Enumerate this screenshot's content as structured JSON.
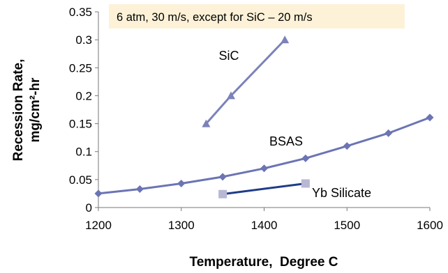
{
  "chart_data": {
    "type": "line",
    "title": "",
    "xlabel": "Temperature,  Degree C",
    "ylabel": "Recession Rate,",
    "ylabel_line2": "mg/cm²-hr",
    "xlim": [
      1200,
      1600
    ],
    "ylim": [
      0,
      0.35
    ],
    "x_ticks": [
      "1200",
      "1300",
      "1400",
      "1500",
      "1600"
    ],
    "y_ticks": [
      "0",
      "0.05",
      "0.1",
      "0.15",
      "0.2",
      "0.25",
      "0.3",
      "0.35"
    ],
    "grid": false,
    "annotation": "6 atm, 30 m/s, except for SiC – 20 m/s",
    "series": [
      {
        "name": "SiC",
        "marker": "triangle",
        "color": "#7b82b8",
        "x": [
          1330,
          1360,
          1425
        ],
        "y": [
          0.15,
          0.2,
          0.3
        ]
      },
      {
        "name": "BSAS",
        "marker": "diamond",
        "color": "#6b74b4",
        "x": [
          1200,
          1250,
          1300,
          1350,
          1400,
          1450,
          1500,
          1550,
          1600
        ],
        "y": [
          0.025,
          0.033,
          0.043,
          0.055,
          0.07,
          0.088,
          0.11,
          0.133,
          0.161
        ]
      },
      {
        "name": "Yb Silicate",
        "marker": "square",
        "color": "#1f3c88",
        "marker_color": "#b8b8d4",
        "x": [
          1350,
          1450
        ],
        "y": [
          0.024,
          0.043
        ]
      }
    ]
  }
}
